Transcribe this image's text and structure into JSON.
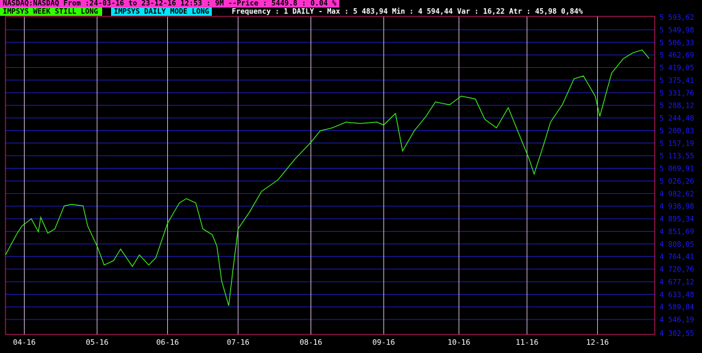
{
  "header": {
    "title": "NASDAQ:NASDAQ From :24-03-16 to 23-12-16 12:53 : 9M  --Price : 5449.8 : 0.04 %",
    "badge_week": "IMPSYS WEEK STILL LONG",
    "badge_daily": "IMPSYS DAILY MODE LONG",
    "stats": "Frequency : 1 DAILY - Max : 5 483,94 Min : 4 594,44 Var : 16,22 Atr : 45,98 0,84%"
  },
  "colors": {
    "background": "#000000",
    "title_bg": "#ff33cc",
    "badge_week_bg": "#33ff00",
    "badge_daily_bg": "#00e5ff",
    "grid_h": "#1f1fd0",
    "grid_v": "#d8c0e0",
    "line": "#44ff22",
    "axis_labels": "#1a1aff",
    "x_labels": "#ffffff",
    "frame": "#e0206e"
  },
  "chart_data": {
    "type": "line",
    "title": "",
    "xlabel": "",
    "ylabel": "",
    "ylim": [
      4302.55,
      5593.62
    ],
    "y_ticks": [
      "5 593,62",
      "5 549,98",
      "5 506,33",
      "5 462,69",
      "5 419,05",
      "5 375,41",
      "5 331,76",
      "5 288,12",
      "5 244,48",
      "5 200,83",
      "5 157,19",
      "5 113,55",
      "5 069,91",
      "5 026,26",
      "4 982,62",
      "4 938,98",
      "4 895,34",
      "4 851,69",
      "4 808,05",
      "4 764,41",
      "4 720,76",
      "4 677,12",
      "4 633,48",
      "4 589,84",
      "4 546,19",
      "4 302,55"
    ],
    "x_ticks": [
      "04-16",
      "05-16",
      "06-16",
      "07-16",
      "08-16",
      "09-16",
      "10-16",
      "11-16",
      "12-16"
    ],
    "x_tick_dates": [
      "2016-04-01",
      "2016-05-02",
      "2016-06-01",
      "2016-07-01",
      "2016-08-01",
      "2016-09-01",
      "2016-10-03",
      "2016-11-01",
      "2016-12-01"
    ],
    "grid": true,
    "series": [
      {
        "points": [
          [
            "2016-03-24",
            4770
          ],
          [
            "2016-03-29",
            4845
          ],
          [
            "2016-03-31",
            4870
          ],
          [
            "2016-04-04",
            4895
          ],
          [
            "2016-04-07",
            4850
          ],
          [
            "2016-04-08",
            4900
          ],
          [
            "2016-04-11",
            4845
          ],
          [
            "2016-04-14",
            4860
          ],
          [
            "2016-04-18",
            4940
          ],
          [
            "2016-04-21",
            4945
          ],
          [
            "2016-04-26",
            4940
          ],
          [
            "2016-04-28",
            4870
          ],
          [
            "2016-05-02",
            4800
          ],
          [
            "2016-05-05",
            4735
          ],
          [
            "2016-05-09",
            4750
          ],
          [
            "2016-05-12",
            4790
          ],
          [
            "2016-05-17",
            4730
          ],
          [
            "2016-05-20",
            4770
          ],
          [
            "2016-05-24",
            4735
          ],
          [
            "2016-05-27",
            4760
          ],
          [
            "2016-06-01",
            4880
          ],
          [
            "2016-06-06",
            4950
          ],
          [
            "2016-06-09",
            4965
          ],
          [
            "2016-06-13",
            4950
          ],
          [
            "2016-06-16",
            4860
          ],
          [
            "2016-06-20",
            4840
          ],
          [
            "2016-06-22",
            4800
          ],
          [
            "2016-06-24",
            4680
          ],
          [
            "2016-06-27",
            4594
          ],
          [
            "2016-06-29",
            4730
          ],
          [
            "2016-07-01",
            4860
          ],
          [
            "2016-07-06",
            4920
          ],
          [
            "2016-07-11",
            4990
          ],
          [
            "2016-07-18",
            5030
          ],
          [
            "2016-07-25",
            5100
          ],
          [
            "2016-08-01",
            5160
          ],
          [
            "2016-08-05",
            5200
          ],
          [
            "2016-08-10",
            5210
          ],
          [
            "2016-08-16",
            5230
          ],
          [
            "2016-08-22",
            5225
          ],
          [
            "2016-08-29",
            5230
          ],
          [
            "2016-09-01",
            5220
          ],
          [
            "2016-09-06",
            5260
          ],
          [
            "2016-09-09",
            5130
          ],
          [
            "2016-09-14",
            5200
          ],
          [
            "2016-09-19",
            5250
          ],
          [
            "2016-09-23",
            5300
          ],
          [
            "2016-09-29",
            5290
          ],
          [
            "2016-10-04",
            5320
          ],
          [
            "2016-10-10",
            5310
          ],
          [
            "2016-10-14",
            5240
          ],
          [
            "2016-10-19",
            5210
          ],
          [
            "2016-10-24",
            5280
          ],
          [
            "2016-10-28",
            5200
          ],
          [
            "2016-11-02",
            5100
          ],
          [
            "2016-11-04",
            5050
          ],
          [
            "2016-11-08",
            5150
          ],
          [
            "2016-11-11",
            5230
          ],
          [
            "2016-11-16",
            5290
          ],
          [
            "2016-11-21",
            5380
          ],
          [
            "2016-11-25",
            5390
          ],
          [
            "2016-11-30",
            5320
          ],
          [
            "2016-12-02",
            5250
          ],
          [
            "2016-12-07",
            5400
          ],
          [
            "2016-12-12",
            5450
          ],
          [
            "2016-12-16",
            5470
          ],
          [
            "2016-12-20",
            5480
          ],
          [
            "2016-12-23",
            5450
          ]
        ]
      }
    ]
  }
}
